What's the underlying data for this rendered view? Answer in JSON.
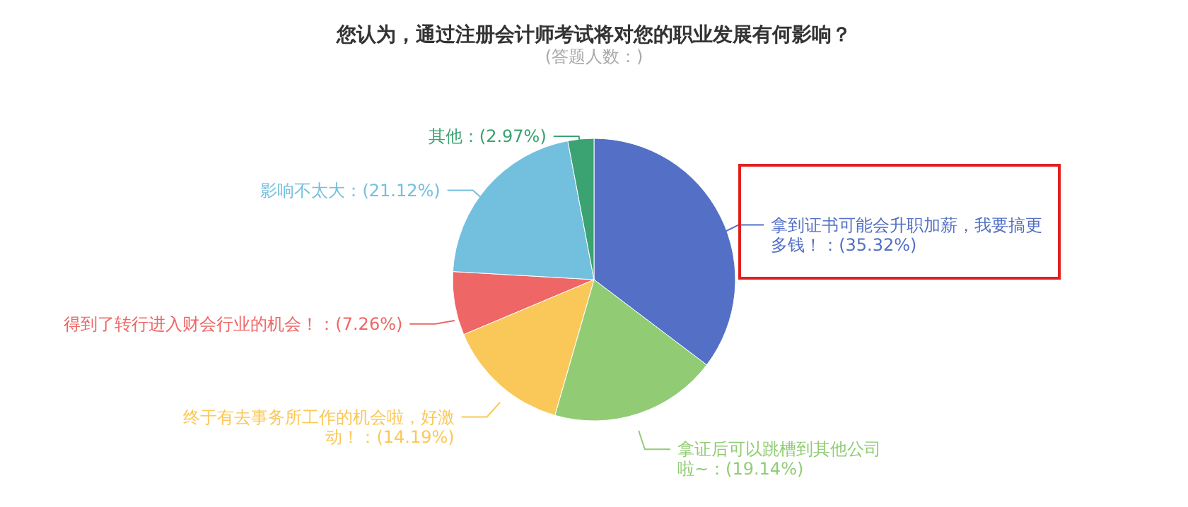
{
  "chart_data": {
    "type": "pie",
    "title": "您认为，通过注册会计师考试将对您的职业发展有何影响？",
    "subtitle": "(答题人数：)",
    "categories": [
      "拿到证书可能会升职加薪，我要搞更多钱！",
      "拿证后可以跳槽到其他公司啦~",
      "终于有去事务所工作的机会啦，好激动！",
      "得到了转行进入财会行业的机会！",
      "影响不太大",
      "其他"
    ],
    "values": [
      35.32,
      19.14,
      14.19,
      7.26,
      21.12,
      2.97
    ],
    "value_labels": [
      "(35.32%)",
      "(19.14%)",
      "(14.19%)",
      "(7.26%)",
      "(21.12%)",
      "(2.97%)"
    ],
    "colors": [
      "#5470c6",
      "#91cc75",
      "#fac858",
      "#ee6666",
      "#73c0de",
      "#3ba272"
    ]
  }
}
